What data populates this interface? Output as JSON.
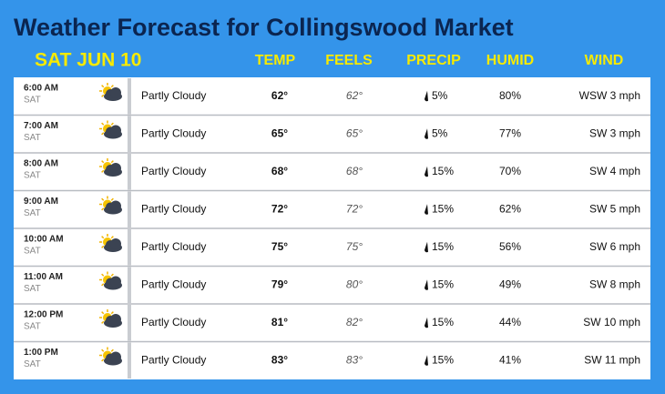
{
  "header": {
    "title": "Weather Forecast for Collingswood Market",
    "date": "SAT JUN 10"
  },
  "columns": [
    "TEMP",
    "FEELS",
    "PRECIP",
    "HUMID",
    "WIND"
  ],
  "rows": [
    {
      "time": "6:00 AM",
      "day": "SAT",
      "condition": "Partly Cloudy",
      "temp": "62°",
      "feels": "62°",
      "precip": "5%",
      "humid": "80%",
      "wind": "WSW 3 mph"
    },
    {
      "time": "7:00 AM",
      "day": "SAT",
      "condition": "Partly Cloudy",
      "temp": "65°",
      "feels": "65°",
      "precip": "5%",
      "humid": "77%",
      "wind": "SW 3 mph"
    },
    {
      "time": "8:00 AM",
      "day": "SAT",
      "condition": "Partly Cloudy",
      "temp": "68°",
      "feels": "68°",
      "precip": "15%",
      "humid": "70%",
      "wind": "SW 4 mph"
    },
    {
      "time": "9:00 AM",
      "day": "SAT",
      "condition": "Partly Cloudy",
      "temp": "72°",
      "feels": "72°",
      "precip": "15%",
      "humid": "62%",
      "wind": "SW 5 mph"
    },
    {
      "time": "10:00 AM",
      "day": "SAT",
      "condition": "Partly Cloudy",
      "temp": "75°",
      "feels": "75°",
      "precip": "15%",
      "humid": "56%",
      "wind": "SW 6 mph"
    },
    {
      "time": "11:00 AM",
      "day": "SAT",
      "condition": "Partly Cloudy",
      "temp": "79°",
      "feels": "80°",
      "precip": "15%",
      "humid": "49%",
      "wind": "SW 8 mph"
    },
    {
      "time": "12:00 PM",
      "day": "SAT",
      "condition": "Partly Cloudy",
      "temp": "81°",
      "feels": "82°",
      "precip": "15%",
      "humid": "44%",
      "wind": "SW 10 mph"
    },
    {
      "time": "1:00 PM",
      "day": "SAT",
      "condition": "Partly Cloudy",
      "temp": "83°",
      "feels": "83°",
      "precip": "15%",
      "humid": "41%",
      "wind": "SW 11 mph"
    }
  ]
}
